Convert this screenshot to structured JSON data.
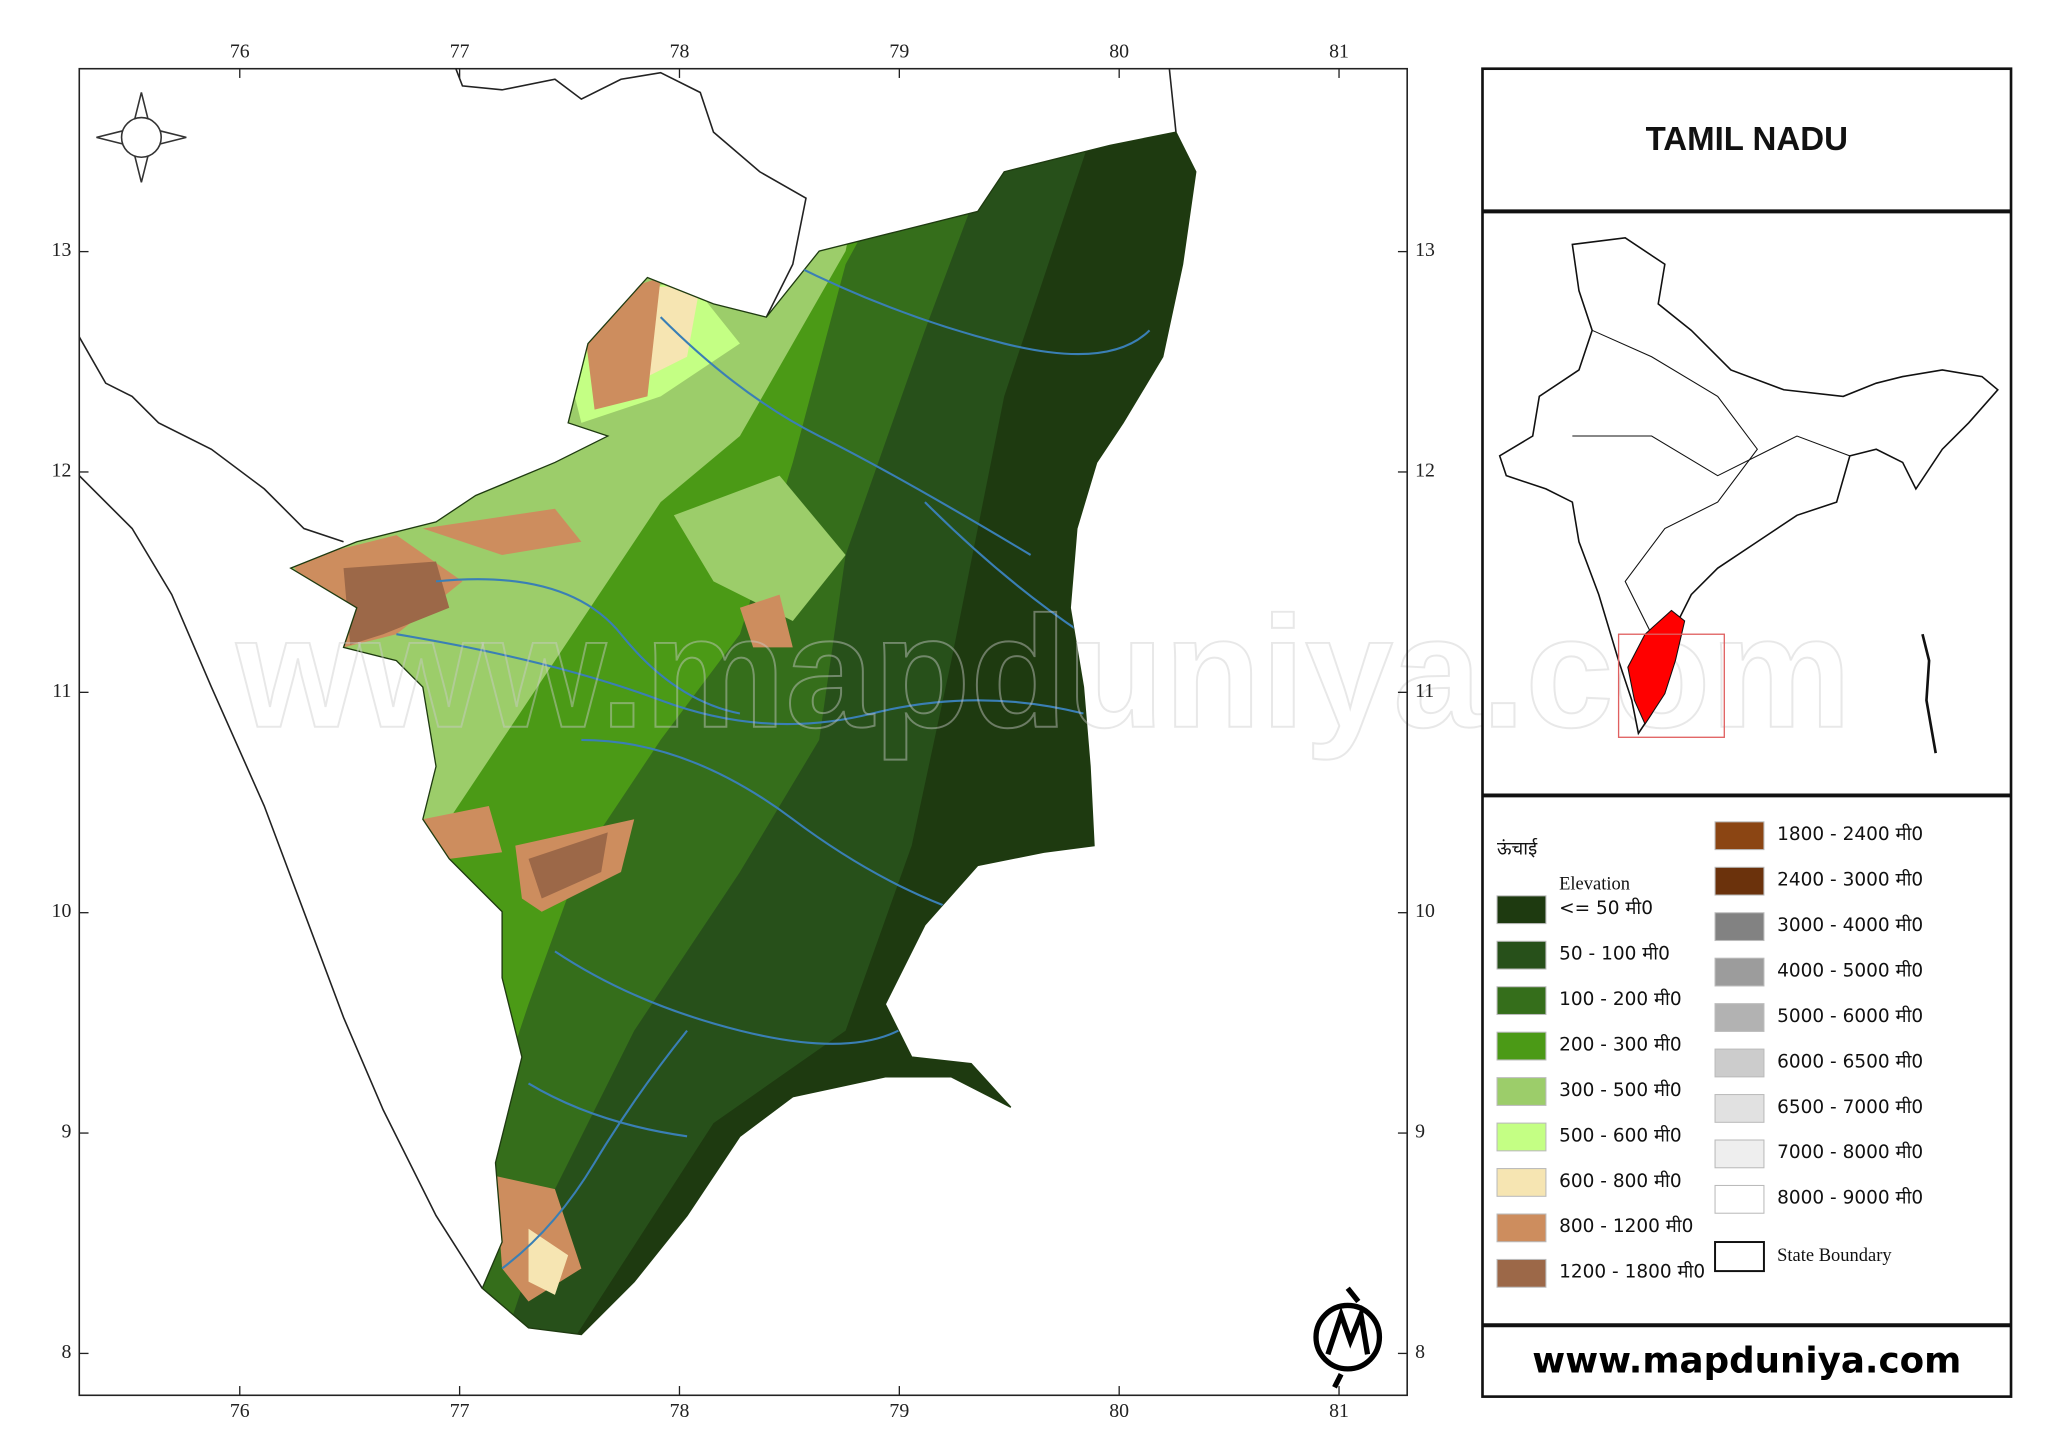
{
  "map": {
    "title": "TAMIL NADU",
    "xlim": [
      75.27,
      81.31
    ],
    "ylim": [
      7.81,
      13.83
    ],
    "lon_ticks": [
      76,
      77,
      78,
      79,
      80,
      81
    ],
    "lat_ticks": [
      8,
      9,
      10,
      11,
      12,
      13
    ]
  },
  "legend": {
    "heading": "ऊंचाई",
    "subheading": "Elevation",
    "items": [
      {
        "label": "<= 50 मी0",
        "color": "#1e3a10"
      },
      {
        "label": "50 - 100 मी0",
        "color": "#27501a"
      },
      {
        "label": "100 - 200 मी0",
        "color": "#356e1b"
      },
      {
        "label": "200 - 300 मी0",
        "color": "#4b9a16"
      },
      {
        "label": "300 - 500 मी0",
        "color": "#9ccd6a"
      },
      {
        "label": "500 - 600 मी0",
        "color": "#c4ff84"
      },
      {
        "label": "600 - 800 मी0",
        "color": "#f6e5b2"
      },
      {
        "label": "800 - 1200 मी0",
        "color": "#cd8d5e"
      },
      {
        "label": "1200 - 1800 मी0",
        "color": "#9c6848"
      },
      {
        "label": "1800 - 2400 मी0",
        "color": "#8b4513"
      },
      {
        "label": "2400 - 3000 मी0",
        "color": "#6b320c"
      },
      {
        "label": "3000 - 4000 मी0",
        "color": "#828282"
      },
      {
        "label": "4000 - 5000 मी0",
        "color": "#9c9c9c"
      },
      {
        "label": "5000 - 6000 मी0",
        "color": "#b2b2b2"
      },
      {
        "label": "6000 - 6500 मी0",
        "color": "#cccccc"
      },
      {
        "label": "6500 - 7000 मी0",
        "color": "#e1e1e1"
      },
      {
        "label": "7000 - 8000 मी0",
        "color": "#eeeeee"
      },
      {
        "label": "8000 - 9000 मी0",
        "color": "#ffffff"
      }
    ],
    "boundary": "State Boundary"
  },
  "footer": {
    "website": "www.mapduniya.com"
  }
}
